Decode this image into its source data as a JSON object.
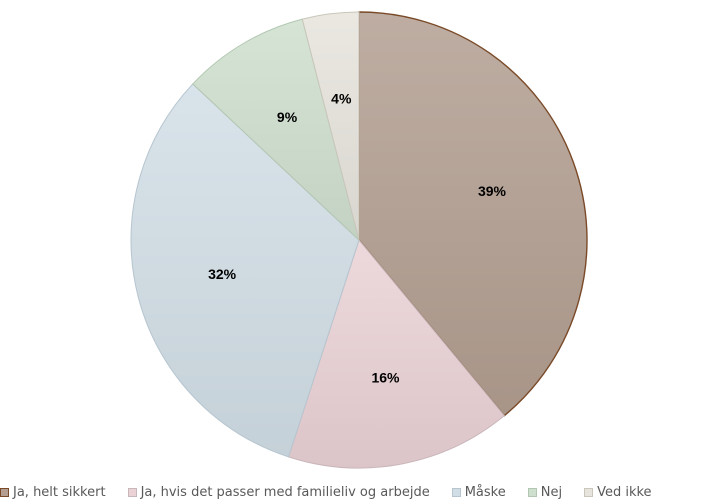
{
  "chart_data": {
    "type": "pie",
    "categories": [
      "Ja, helt sikkert",
      "Ja, hvis det passer med familieliv og arbejde",
      "Måske",
      "Nej",
      "Ved ikke"
    ],
    "values": [
      39,
      16,
      32,
      9,
      4
    ],
    "value_labels": [
      "39%",
      "16%",
      "32%",
      "9%",
      "4%"
    ],
    "colors": [
      "#b39e91",
      "#ead2d6",
      "#d2dee6",
      "#cfdfcf",
      "#e6e4dc"
    ],
    "edge_colors": [
      "#7a4a28",
      "#c9b6ba",
      "#b6c5cf",
      "#b2c7b2",
      "#c9c6bb"
    ],
    "start_angle_deg": 0,
    "direction": "clockwise",
    "legend_position": "bottom"
  }
}
